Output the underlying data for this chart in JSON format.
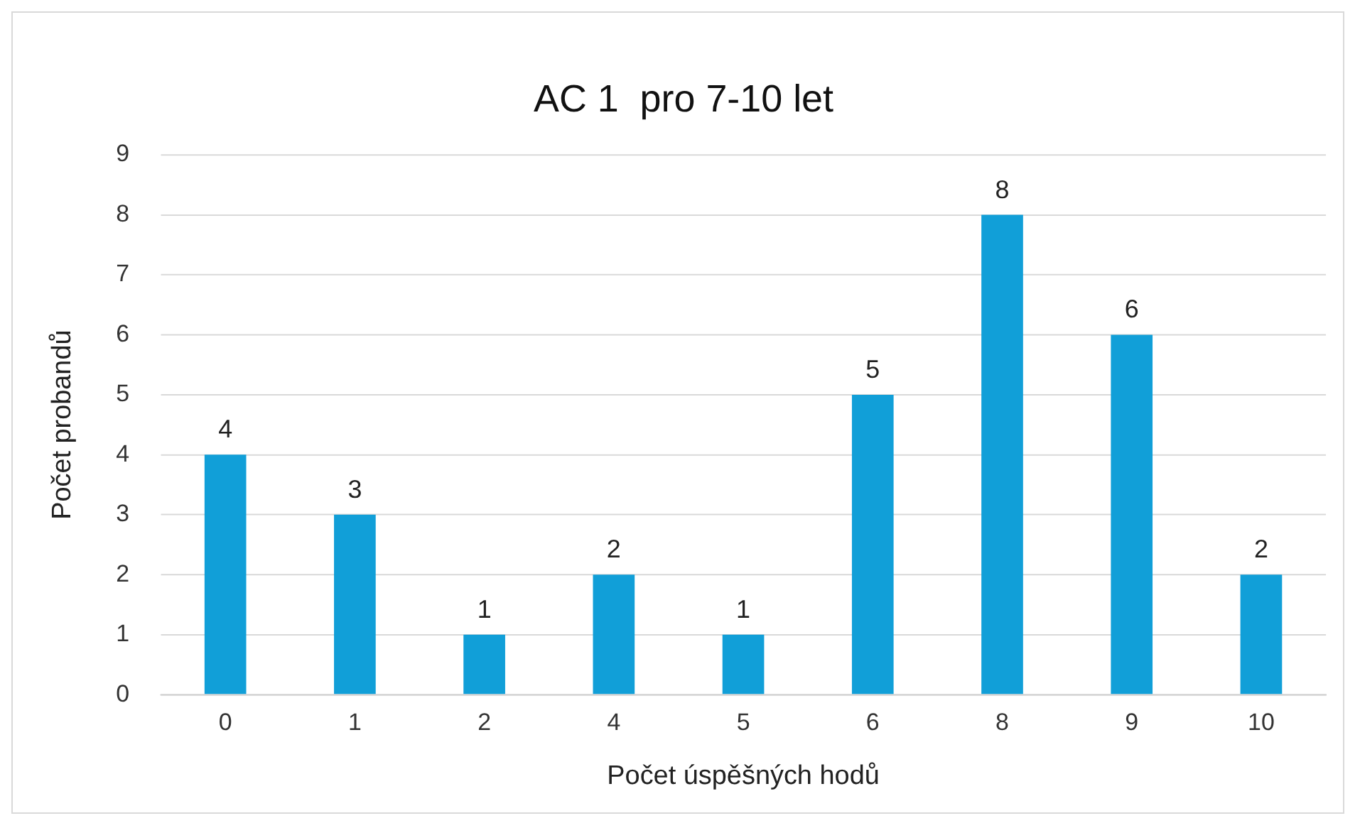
{
  "chart_data": {
    "type": "bar",
    "title": "AC 1  pro 7-10 let",
    "xlabel": "Počet úspěšných hodů",
    "ylabel": "Počet probandů",
    "categories": [
      "0",
      "1",
      "2",
      "4",
      "5",
      "6",
      "8",
      "9",
      "10"
    ],
    "values": [
      4,
      3,
      1,
      2,
      1,
      5,
      8,
      6,
      2
    ],
    "color": "#119fd8",
    "ylim": [
      0,
      9
    ],
    "yticks": [
      0,
      1,
      2,
      3,
      4,
      5,
      6,
      7,
      8,
      9
    ],
    "grid": "y",
    "data_labels": true,
    "legend": false
  }
}
